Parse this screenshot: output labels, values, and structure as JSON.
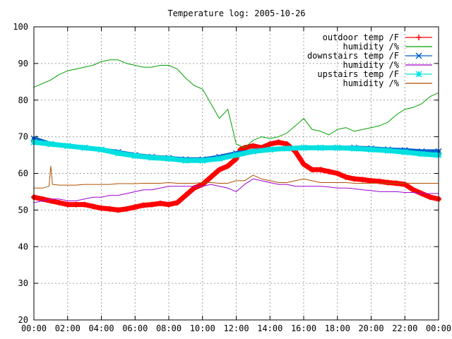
{
  "chart_data": {
    "type": "line",
    "title": "Temperature log: 2005-10-26",
    "xlabel": "",
    "ylabel": "",
    "xlim": [
      0,
      24
    ],
    "ylim": [
      20,
      100
    ],
    "x_ticks": [
      "00:00",
      "02:00",
      "04:00",
      "06:00",
      "08:00",
      "10:00",
      "12:00",
      "14:00",
      "16:00",
      "18:00",
      "20:00",
      "22:00",
      "00:00"
    ],
    "y_ticks": [
      20,
      30,
      40,
      50,
      60,
      70,
      80,
      90,
      100
    ],
    "grid": true,
    "legend_position": "top-right",
    "series": [
      {
        "name": "outdoor temp /F",
        "color": "#ff0000",
        "marker": "plus",
        "x": [
          0,
          0.5,
          1,
          1.5,
          2,
          2.5,
          3,
          3.5,
          4,
          4.5,
          5,
          5.5,
          6,
          6.5,
          7,
          7.5,
          8,
          8.5,
          9,
          9.5,
          10,
          10.5,
          11,
          11.5,
          12,
          12.25,
          12.5,
          13,
          13.5,
          14,
          14.5,
          15,
          15.5,
          16,
          16.5,
          17,
          17.5,
          18,
          18.5,
          19,
          19.5,
          20,
          20.5,
          21,
          21.5,
          22,
          22.5,
          23,
          23.5,
          24
        ],
        "values": [
          53.5,
          53,
          52.5,
          52,
          51.5,
          51.5,
          51.5,
          51,
          50.5,
          50.3,
          50,
          50.3,
          50.8,
          51.3,
          51.5,
          51.8,
          51.5,
          52,
          54,
          56,
          57,
          59,
          61,
          62,
          64,
          66.5,
          67,
          67.5,
          67,
          68,
          68.5,
          68,
          66,
          62.5,
          61,
          61,
          60.5,
          60,
          59,
          58.5,
          58.3,
          58,
          57.8,
          57.5,
          57.3,
          57,
          55.5,
          54.5,
          53.5,
          53
        ]
      },
      {
        "name": "humidity /%",
        "color": "#00a000",
        "marker": "none",
        "x": [
          0,
          0.5,
          1,
          1.5,
          2,
          2.5,
          3,
          3.5,
          4,
          4.5,
          5,
          5.5,
          6,
          6.5,
          7,
          7.5,
          8,
          8.5,
          9,
          9.5,
          10,
          10.5,
          11,
          11.5,
          12,
          12.5,
          13,
          13.5,
          14,
          14.5,
          15,
          15.5,
          16,
          16.5,
          17,
          17.5,
          18,
          18.5,
          19,
          19.5,
          20,
          20.5,
          21,
          21.5,
          22,
          22.5,
          23,
          23.5,
          24
        ],
        "values": [
          83.5,
          84.5,
          85.5,
          87,
          88,
          88.5,
          89,
          89.5,
          90.5,
          91,
          91,
          90,
          89.5,
          89,
          89,
          89.5,
          89.5,
          88.5,
          86,
          84,
          83,
          79,
          75,
          77.5,
          68,
          67,
          69,
          70,
          69.5,
          70,
          71,
          73,
          75,
          72,
          71.5,
          70.5,
          72,
          72.5,
          71.5,
          72,
          72.5,
          73,
          74,
          76,
          77.5,
          78,
          79,
          81,
          82
        ]
      },
      {
        "name": "downstairs temp /F",
        "color": "#0060d0",
        "marker": "x",
        "x": [
          0,
          1,
          2,
          3,
          4,
          5,
          6,
          7,
          8,
          9,
          10,
          11,
          12,
          13,
          14,
          15,
          16,
          17,
          18,
          19,
          20,
          21,
          22,
          23,
          24
        ],
        "values": [
          69.5,
          68,
          67.5,
          67,
          66.5,
          65.8,
          65,
          64.5,
          64.2,
          63.8,
          63.8,
          64.5,
          65.5,
          66,
          66.5,
          66.8,
          67,
          67,
          67,
          67,
          66.8,
          66.5,
          66.3,
          66,
          66
        ]
      },
      {
        "name": "humidity /%",
        "color": "#a000d0",
        "marker": "none",
        "x": [
          0,
          0.5,
          1,
          1.5,
          2,
          2.5,
          3,
          3.5,
          4,
          4.5,
          5,
          5.5,
          6,
          6.5,
          7,
          7.5,
          8,
          8.5,
          9,
          9.5,
          10,
          10.5,
          11,
          11.5,
          12,
          12.5,
          13,
          13.5,
          14,
          14.5,
          15,
          15.5,
          16,
          16.5,
          17,
          17.5,
          18,
          18.5,
          19,
          19.5,
          20,
          20.5,
          21,
          21.5,
          22,
          22.5,
          23,
          23.5,
          24
        ],
        "values": [
          52,
          52.5,
          53,
          53,
          52.5,
          52.5,
          53,
          53.5,
          53.5,
          54,
          54,
          54.5,
          55,
          55.5,
          55.5,
          56,
          56.5,
          56.5,
          56.5,
          56.5,
          56.5,
          57,
          56.5,
          56,
          55,
          57,
          58.5,
          58,
          57.5,
          57,
          57,
          56.5,
          56.5,
          56.5,
          56.5,
          56.3,
          56,
          56,
          55.8,
          55.5,
          55.3,
          55,
          55,
          55,
          54.8,
          54.8,
          54.5,
          54.5,
          54.5
        ]
      },
      {
        "name": "upstairs temp /F",
        "color": "#00e0e0",
        "marker": "star",
        "x": [
          0,
          1,
          2,
          3,
          4,
          5,
          6,
          7,
          8,
          9,
          10,
          11,
          12,
          13,
          14,
          15,
          16,
          17,
          18,
          19,
          20,
          21,
          22,
          23,
          24
        ],
        "values": [
          68.5,
          68,
          67.5,
          67,
          66.5,
          65.5,
          64.8,
          64.3,
          64,
          63.5,
          63.5,
          64,
          65,
          66,
          66.5,
          66.8,
          67,
          67,
          67,
          66.8,
          66.5,
          66.2,
          65.8,
          65.3,
          65
        ]
      },
      {
        "name": "humidity /%",
        "color": "#b05000",
        "marker": "none",
        "x": [
          0,
          0.5,
          0.9,
          1,
          1.1,
          1.5,
          2,
          2.5,
          3,
          3.5,
          4,
          4.5,
          5,
          5.5,
          6,
          6.5,
          7,
          7.5,
          8,
          8.5,
          9,
          9.5,
          10,
          10.5,
          11,
          11.5,
          12,
          12.5,
          13,
          13.5,
          14,
          14.5,
          15,
          15.5,
          16,
          16.5,
          17,
          17.5,
          18,
          18.5,
          19,
          19.5,
          20,
          20.5,
          21,
          21.5,
          22,
          22.5,
          23,
          23.5,
          24
        ],
        "values": [
          56,
          56,
          56.5,
          62,
          57,
          56.8,
          56.8,
          56.8,
          57,
          57,
          57,
          57,
          57.2,
          57.2,
          57.2,
          57.3,
          57.3,
          57.3,
          57.5,
          57.3,
          57.3,
          57.3,
          57.5,
          57.5,
          57.3,
          57.3,
          58,
          58,
          59.5,
          58.5,
          58,
          57.5,
          57.5,
          58,
          58.5,
          58,
          57.5,
          57.5,
          57.5,
          57.5,
          57.3,
          57.3,
          57.3,
          57.3,
          57.3,
          57.3,
          57.3,
          57.3,
          57.3,
          57.3,
          57.3
        ]
      }
    ]
  }
}
